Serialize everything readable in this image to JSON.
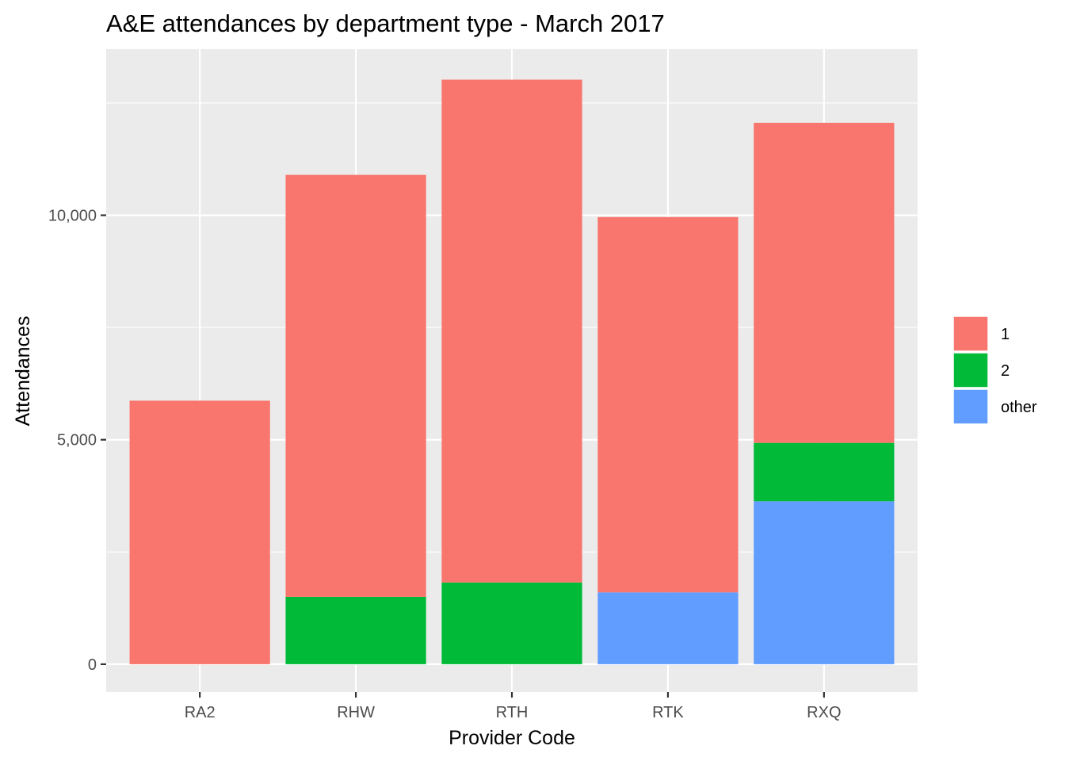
{
  "chart_data": {
    "type": "bar",
    "stacked": true,
    "title": "A&E attendances by department type - March 2017",
    "xlabel": "Provider Code",
    "ylabel": "Attendances",
    "categories": [
      "RA2",
      "RHW",
      "RTH",
      "RTK",
      "RXQ"
    ],
    "series": [
      {
        "name": "1",
        "color": "#F8766D",
        "values": [
          5870,
          9400,
          11200,
          8360,
          7130
        ]
      },
      {
        "name": "2",
        "color": "#00BA38",
        "values": [
          0,
          1500,
          1820,
          0,
          1300
        ]
      },
      {
        "name": "other",
        "color": "#619CFF",
        "values": [
          0,
          0,
          0,
          1600,
          3630
        ]
      }
    ],
    "stack_order_bottom_to_top": [
      "other",
      "2",
      "1"
    ],
    "ylim": [
      -620,
      13700
    ],
    "yticks": [
      0,
      5000,
      10000
    ],
    "ytick_labels": [
      "0",
      "5,000",
      "10,000"
    ],
    "grid": true,
    "legend_position": "right",
    "panel_background": "#EBEBEB",
    "grid_color": "#FFFFFF"
  }
}
